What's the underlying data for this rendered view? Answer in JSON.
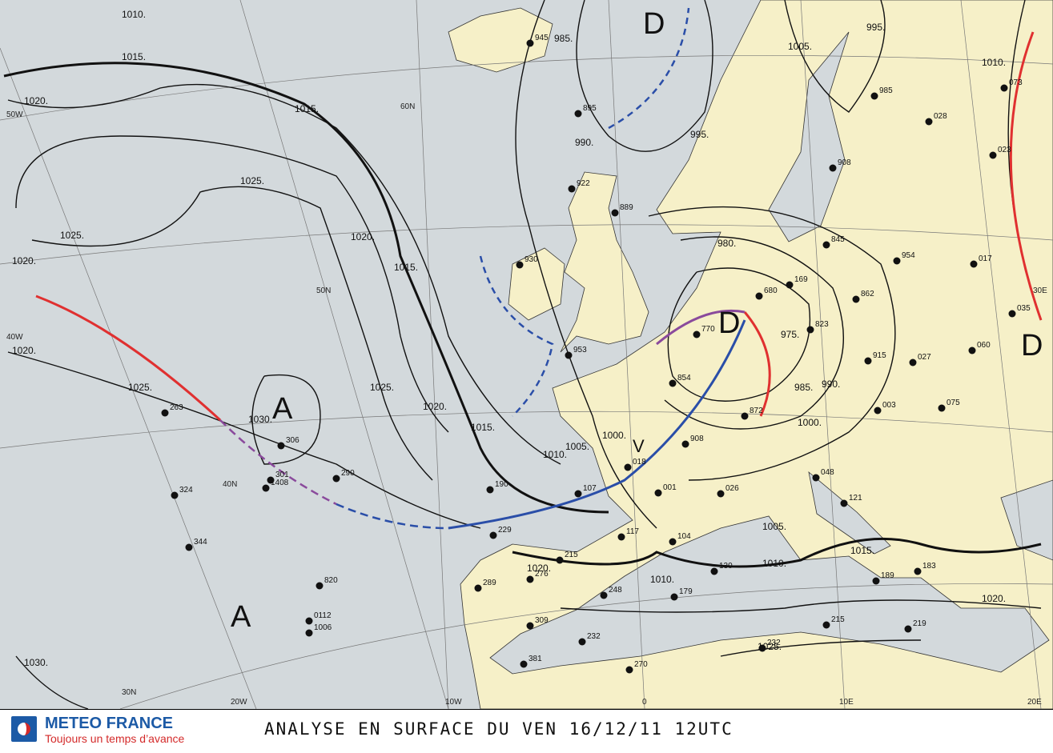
{
  "isobar_labels": [
    "1010.",
    "1015.",
    "1020.",
    "1015.",
    "1025.",
    "1025.",
    "1020.",
    "1020.",
    "1025.",
    "1020.",
    "1015.",
    "1025.",
    "1020.",
    "1015.",
    "1010.",
    "1005.",
    "1000.",
    "995.",
    "990.",
    "985.",
    "980.",
    "975.",
    "985.",
    "990.",
    "1000.",
    "1005.",
    "1010.",
    "1015.",
    "1020.",
    "1025.",
    "1010.",
    "1005.",
    "995.",
    "1030.",
    "1030.",
    "1020.",
    "1010."
  ],
  "centers": [
    "D",
    "D",
    "D",
    "A",
    "A",
    "V"
  ],
  "graticule_labels": [
    "50W",
    "60N",
    "50N",
    "40W",
    "40N",
    "30N",
    "20W",
    "10W",
    "0",
    "20E",
    "30E",
    "10E"
  ],
  "stations": [
    "306",
    "301",
    "1408",
    "263",
    "290",
    "324",
    "344",
    "820",
    "0112",
    "1006",
    "229",
    "107",
    "018",
    "908",
    "854",
    "770",
    "680",
    "872",
    "953",
    "889",
    "895",
    "945",
    "922",
    "930",
    "017",
    "954",
    "060",
    "035",
    "075",
    "003",
    "117",
    "104",
    "130",
    "179",
    "248",
    "215",
    "276",
    "289",
    "309",
    "232",
    "270",
    "381",
    "121",
    "048",
    "189",
    "183",
    "219",
    "215",
    "232",
    "190",
    "001",
    "026",
    "862",
    "823",
    "027",
    "915",
    "169",
    "845",
    "908",
    "028",
    "985",
    "073",
    "023"
  ],
  "footer": {
    "brand": "METEO FRANCE",
    "slogan": "Toujours un temps d’avance",
    "title": "ANALYSE EN SURFACE DU VEN 16/12/11 12UTC"
  }
}
